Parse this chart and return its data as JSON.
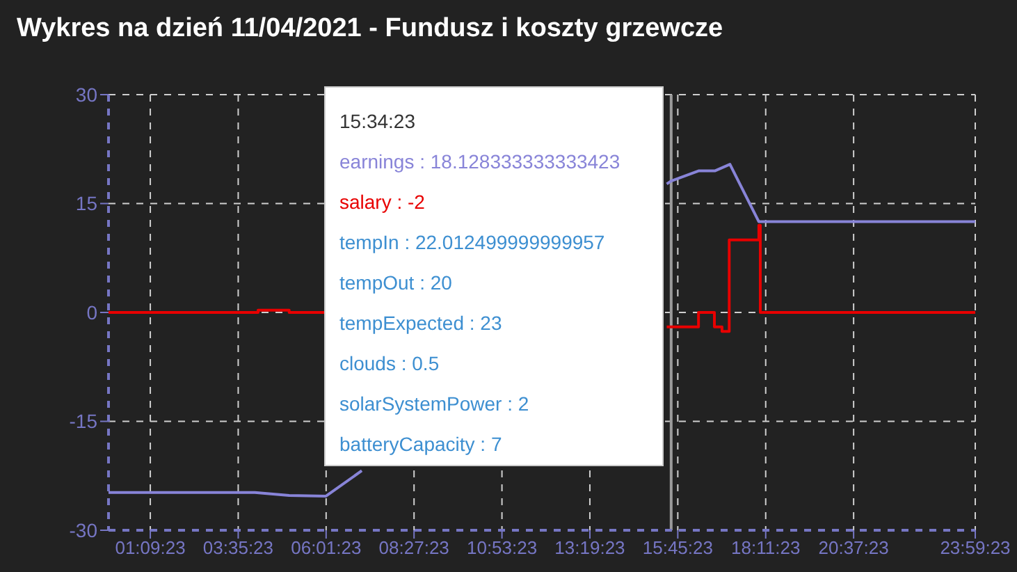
{
  "chart_data": {
    "type": "line",
    "title": "Wykres na dzień 11/04/2021 - Fundusz i koszty grzewcze",
    "series": [
      {
        "color": "#8884d8",
        "x": [
          0,
          4.05,
          5.0,
          6.02,
          7.01,
          11,
          15.45,
          15.573,
          16.33,
          16.78,
          17.2,
          18.0,
          23.99
        ],
        "values": [
          -24.8,
          -24.8,
          -25.2,
          -25.3,
          -21.8,
          null,
          17.7,
          18.1,
          19.5,
          19.5,
          20.4,
          12.5,
          12.5
        ]
      },
      {
        "type": "step",
        "color": "#e80000",
        "x": [
          0,
          4.14,
          5.0,
          6.0,
          11,
          15.45,
          16.33,
          16.77,
          16.98,
          17.18,
          18.0,
          18.04,
          23.99
        ],
        "values": [
          0,
          0.3,
          0,
          0,
          null,
          -2,
          0,
          -2,
          -2.6,
          10,
          12,
          0,
          0
        ]
      }
    ],
    "xlim": [
      0,
      23.99
    ],
    "xticks": [
      {
        "value": 1.1564,
        "label": "01:09:23"
      },
      {
        "value": 3.5897,
        "label": "03:35:23"
      },
      {
        "value": 6.0231,
        "label": "06:01:23"
      },
      {
        "value": 8.4564,
        "label": "08:27:23"
      },
      {
        "value": 10.8897,
        "label": "10:53:23"
      },
      {
        "value": 13.3231,
        "label": "13:19:23"
      },
      {
        "value": 15.7564,
        "label": "15:45:23"
      },
      {
        "value": 18.1897,
        "label": "18:11:23"
      },
      {
        "value": 20.6231,
        "label": "20:37:23"
      },
      {
        "value": 23.9897,
        "label": "23:59:23"
      }
    ],
    "ylim": [
      -30,
      30
    ],
    "yticks": [
      -30,
      -15,
      0,
      15,
      30
    ],
    "grid": true,
    "marker": "none",
    "line_style": "solid",
    "ref_lines": [
      {
        "axis": "x",
        "value": 15.573,
        "color": "#9a9a9a"
      }
    ],
    "annotations": [
      "15:34:23",
      "earnings : 18.128333333333423",
      "salary : -2",
      "tempIn : 22.012499999999957",
      "tempOut : 20",
      "tempExpected : 23",
      "clouds : 0.5",
      "solarSystemPower : 2",
      "batteryCapacity : 7"
    ]
  }
}
